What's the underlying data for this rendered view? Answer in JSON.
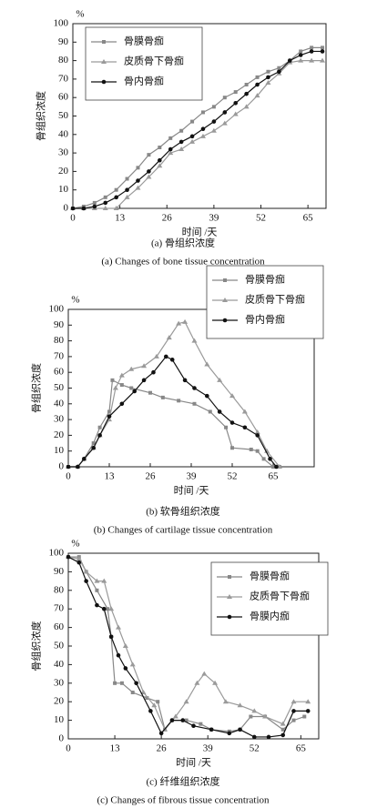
{
  "chart_data": [
    {
      "type": "line",
      "caption": "(a) 骨组织浓度",
      "caption_en": "(a) Changes of bone tissue concentration",
      "x_label": "时间 /天",
      "y_label": "骨组织浓度",
      "y_unit": "%",
      "xlim": [
        0,
        70
      ],
      "xticks": [
        0,
        13,
        26,
        39,
        52,
        65
      ],
      "ylim": [
        0,
        100
      ],
      "yticks": [
        0,
        10,
        20,
        30,
        40,
        50,
        60,
        70,
        80,
        90,
        100
      ],
      "legend": "upper left",
      "series": [
        {
          "name": "骨膜骨痂",
          "color": "#888888",
          "marker": "square",
          "x": [
            0,
            3,
            6,
            9,
            12,
            15,
            18,
            21,
            24,
            27,
            30,
            33,
            36,
            39,
            42,
            45,
            48,
            51,
            54,
            57,
            60,
            63,
            66,
            69
          ],
          "values": [
            0,
            1,
            3,
            6,
            10,
            16,
            22,
            29,
            33,
            38,
            42,
            47,
            52,
            55,
            60,
            63,
            67,
            71,
            74,
            76,
            80,
            85,
            87,
            87
          ]
        },
        {
          "name": "皮质骨下骨痂",
          "color": "#9a9a9a",
          "marker": "triangle",
          "x": [
            0,
            3,
            6,
            9,
            12,
            15,
            18,
            21,
            24,
            27,
            30,
            33,
            36,
            39,
            42,
            45,
            48,
            51,
            54,
            57,
            60,
            63,
            66,
            69
          ],
          "values": [
            0,
            0,
            0,
            0,
            0,
            6,
            11,
            17,
            23,
            30,
            32,
            36,
            39,
            42,
            46,
            51,
            55,
            61,
            68,
            73,
            79,
            80,
            80,
            80
          ]
        },
        {
          "name": "骨内骨痂",
          "color": "#111111",
          "marker": "circle",
          "x": [
            0,
            3,
            6,
            9,
            12,
            15,
            18,
            21,
            24,
            27,
            30,
            33,
            36,
            39,
            42,
            45,
            48,
            51,
            54,
            57,
            60,
            63,
            66,
            69
          ],
          "values": [
            0,
            0,
            1,
            3,
            6,
            10,
            15,
            20,
            26,
            32,
            36,
            39,
            43,
            47,
            52,
            57,
            62,
            67,
            71,
            74,
            80,
            83,
            85,
            85
          ]
        }
      ]
    },
    {
      "type": "line",
      "caption": "(b) 软骨组织浓度",
      "caption_en": "(b) Changes of cartilage tissue concentration",
      "x_label": "时间 /天",
      "y_label": "骨组织浓度",
      "y_unit": "%",
      "xlim": [
        0,
        78
      ],
      "xticks": [
        0,
        13,
        26,
        39,
        52,
        65
      ],
      "ylim": [
        0,
        100
      ],
      "yticks": [
        0,
        10,
        20,
        30,
        40,
        50,
        60,
        70,
        80,
        90,
        100
      ],
      "legend": "upper right",
      "series": [
        {
          "name": "骨膜骨痂",
          "color": "#888888",
          "marker": "square",
          "x": [
            0,
            3,
            5,
            8,
            10,
            13,
            14,
            17,
            20,
            26,
            30,
            35,
            40,
            45,
            50,
            52,
            58,
            60,
            62,
            65,
            67
          ],
          "values": [
            0,
            0,
            5,
            15,
            25,
            35,
            55,
            52,
            50,
            47,
            44,
            42,
            40,
            35,
            25,
            12,
            11,
            10,
            5,
            0,
            0
          ]
        },
        {
          "name": "皮质骨下骨痂",
          "color": "#9a9a9a",
          "marker": "triangle",
          "x": [
            0,
            3,
            5,
            8,
            10,
            13,
            15,
            17,
            20,
            24,
            28,
            32,
            35,
            37,
            40,
            44,
            48,
            52,
            56,
            60,
            63,
            67
          ],
          "values": [
            0,
            0,
            5,
            12,
            20,
            30,
            50,
            58,
            62,
            64,
            70,
            82,
            91,
            92,
            80,
            65,
            55,
            45,
            35,
            22,
            10,
            0
          ]
        },
        {
          "name": "骨内骨痂",
          "color": "#111111",
          "marker": "circle",
          "x": [
            0,
            3,
            5,
            8,
            10,
            13,
            17,
            21,
            24,
            27,
            31,
            33,
            37,
            40,
            44,
            48,
            52,
            56,
            60,
            64,
            66
          ],
          "values": [
            0,
            0,
            5,
            12,
            20,
            32,
            40,
            48,
            55,
            60,
            70,
            68,
            55,
            50,
            45,
            35,
            28,
            25,
            20,
            5,
            0
          ]
        }
      ]
    },
    {
      "type": "line",
      "caption": "(c) 纤维组织浓度",
      "caption_en": "(c) Changes of fibrous tissue concentration",
      "x_label": "时间 /天",
      "y_label": "骨组织浓度",
      "y_unit": "%",
      "xlim": [
        0,
        70
      ],
      "xticks": [
        0,
        13,
        26,
        39,
        52,
        65
      ],
      "ylim": [
        0,
        100
      ],
      "yticks": [
        0,
        10,
        20,
        30,
        40,
        50,
        60,
        70,
        80,
        90,
        100
      ],
      "legend": "upper right",
      "series": [
        {
          "name": "骨膜骨痂",
          "color": "#888888",
          "marker": "square",
          "x": [
            0,
            3,
            5,
            8,
            11,
            12,
            13,
            15,
            18,
            22,
            25,
            27,
            29,
            33,
            37,
            40,
            45,
            48,
            51,
            55,
            60,
            63,
            66
          ],
          "values": [
            98,
            98,
            90,
            80,
            70,
            55,
            30,
            30,
            25,
            22,
            20,
            5,
            10,
            10,
            8,
            5,
            4,
            5,
            12,
            12,
            5,
            10,
            12
          ]
        },
        {
          "name": "皮质骨下骨痂",
          "color": "#9a9a9a",
          "marker": "triangle",
          "x": [
            0,
            3,
            5,
            8,
            10,
            12,
            14,
            16,
            18,
            21,
            24,
            27,
            30,
            33,
            36,
            38,
            41,
            44,
            48,
            52,
            55,
            60,
            63,
            67
          ],
          "values": [
            98,
            97,
            90,
            85,
            85,
            70,
            60,
            50,
            40,
            25,
            18,
            5,
            12,
            20,
            30,
            35,
            30,
            20,
            18,
            15,
            12,
            8,
            20,
            20
          ]
        },
        {
          "name": "骨膜内痂",
          "color": "#111111",
          "marker": "circle",
          "x": [
            0,
            3,
            5,
            8,
            10,
            12,
            14,
            16,
            19,
            23,
            26,
            29,
            32,
            35,
            40,
            45,
            48,
            52,
            56,
            60,
            63,
            67
          ],
          "values": [
            98,
            95,
            85,
            72,
            70,
            55,
            45,
            38,
            30,
            15,
            3,
            10,
            10,
            7,
            5,
            3,
            5,
            1,
            1,
            2,
            15,
            15
          ]
        }
      ]
    }
  ]
}
